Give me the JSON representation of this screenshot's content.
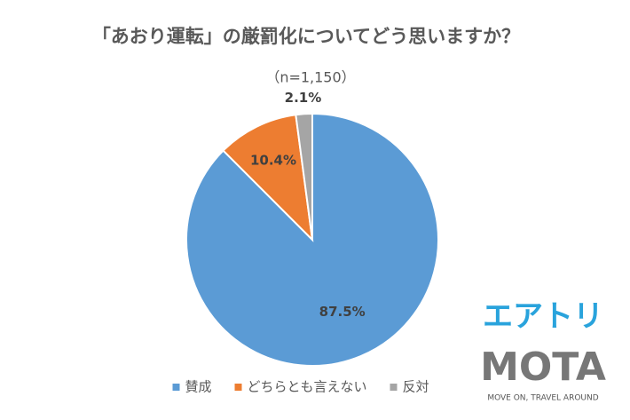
{
  "chart_data": {
    "type": "pie",
    "title": "「あおり運転」の厳罰化についてどう思いますか？",
    "subtitle": "（n=1,150）",
    "categories": [
      "賛成",
      "どちらとも言えない",
      "反対"
    ],
    "values": [
      87.5,
      10.4,
      2.1
    ],
    "value_labels": [
      "87.5%",
      "10.4%",
      "2.1%"
    ],
    "colors": [
      "#5b9bd5",
      "#ed7d31",
      "#a5a5a5"
    ],
    "legend": "bottom"
  },
  "logos": {
    "airtrip": "エアトリ",
    "mota": "MOTA",
    "tagline": "MOVE ON, TRAVEL AROUND"
  }
}
